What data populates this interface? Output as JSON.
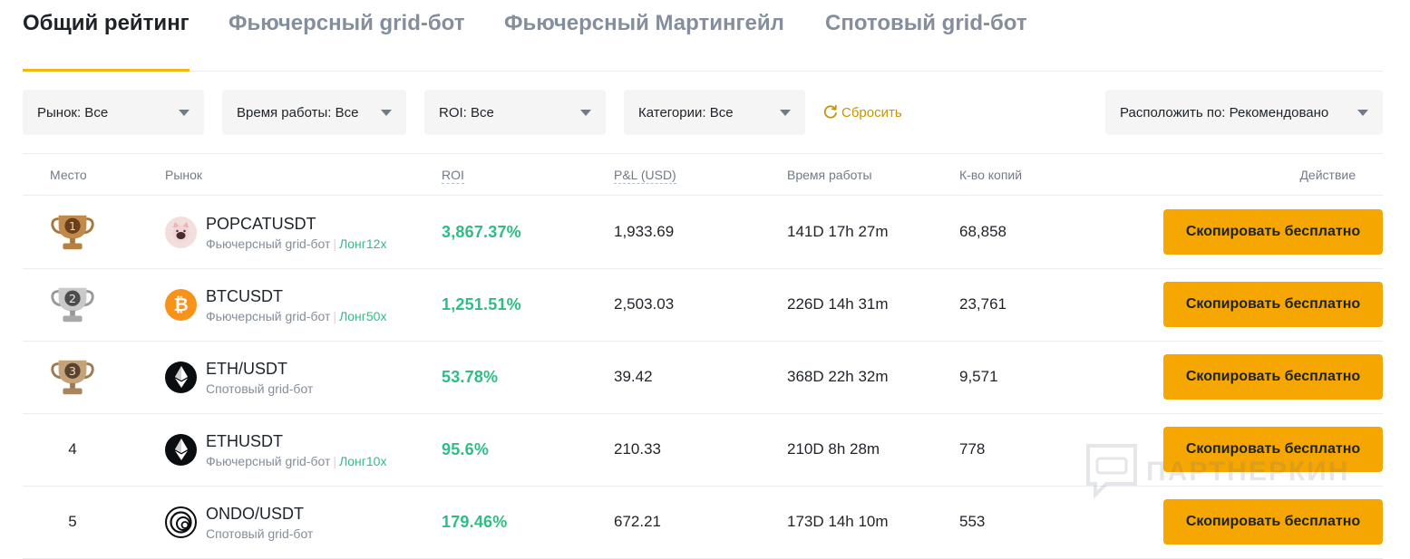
{
  "tabs": [
    {
      "label": "Общий рейтинг",
      "active": true
    },
    {
      "label": "Фьючерсный grid-бот",
      "active": false
    },
    {
      "label": "Фьючерсный Мартингейл",
      "active": false
    },
    {
      "label": "Спотовый grid-бот",
      "active": false
    }
  ],
  "filters": {
    "market": "Рынок: Все",
    "runtime": "Время работы: Все",
    "roi": "ROI: Все",
    "categories": "Категории: Все",
    "reset": "Сбросить",
    "sort": "Расположить по: Рекомендовано"
  },
  "columns": {
    "rank": "Место",
    "market": "Рынок",
    "roi": "ROI",
    "pnl": "P&L (USD)",
    "runtime": "Время работы",
    "copies": "К-во копий",
    "action": "Действие"
  },
  "rows": [
    {
      "rank": "1",
      "trophy": "gold",
      "coin_icon": "popcat-icon",
      "market": "POPCATUSDT",
      "type": "Фьючерсный grid-бот",
      "leverage": "Лонг12x",
      "roi": "3,867.37%",
      "pnl": "1,933.69",
      "runtime": "141D 17h 27m",
      "copies": "68,858",
      "action": "Скопировать бесплатно"
    },
    {
      "rank": "2",
      "trophy": "silver",
      "coin_icon": "btc-icon",
      "market": "BTCUSDT",
      "type": "Фьючерсный grid-бот",
      "leverage": "Лонг50x",
      "roi": "1,251.51%",
      "pnl": "2,503.03",
      "runtime": "226D 14h 31m",
      "copies": "23,761",
      "action": "Скопировать бесплатно"
    },
    {
      "rank": "3",
      "trophy": "bronze",
      "coin_icon": "eth-icon",
      "market": "ETH/USDT",
      "type": "Спотовый grid-бот",
      "leverage": "",
      "roi": "53.78%",
      "pnl": "39.42",
      "runtime": "368D 22h 32m",
      "copies": "9,571",
      "action": "Скопировать бесплатно"
    },
    {
      "rank": "4",
      "trophy": "",
      "coin_icon": "eth-icon",
      "market": "ETHUSDT",
      "type": "Фьючерсный grid-бот",
      "leverage": "Лонг10x",
      "roi": "95.6%",
      "pnl": "210.33",
      "runtime": "210D 8h 28m",
      "copies": "778",
      "action": "Скопировать бесплатно"
    },
    {
      "rank": "5",
      "trophy": "",
      "coin_icon": "ondo-icon",
      "market": "ONDO/USDT",
      "type": "Спотовый grid-бот",
      "leverage": "",
      "roi": "179.46%",
      "pnl": "672.21",
      "runtime": "173D 14h 10m",
      "copies": "553",
      "action": "Скопировать бесплатно"
    }
  ],
  "watermark": "ПАРТНЕРКИН",
  "colors": {
    "accent": "#f0b90b",
    "button": "#f6a600",
    "positive": "#2ebd85",
    "reset": "#c99400"
  }
}
